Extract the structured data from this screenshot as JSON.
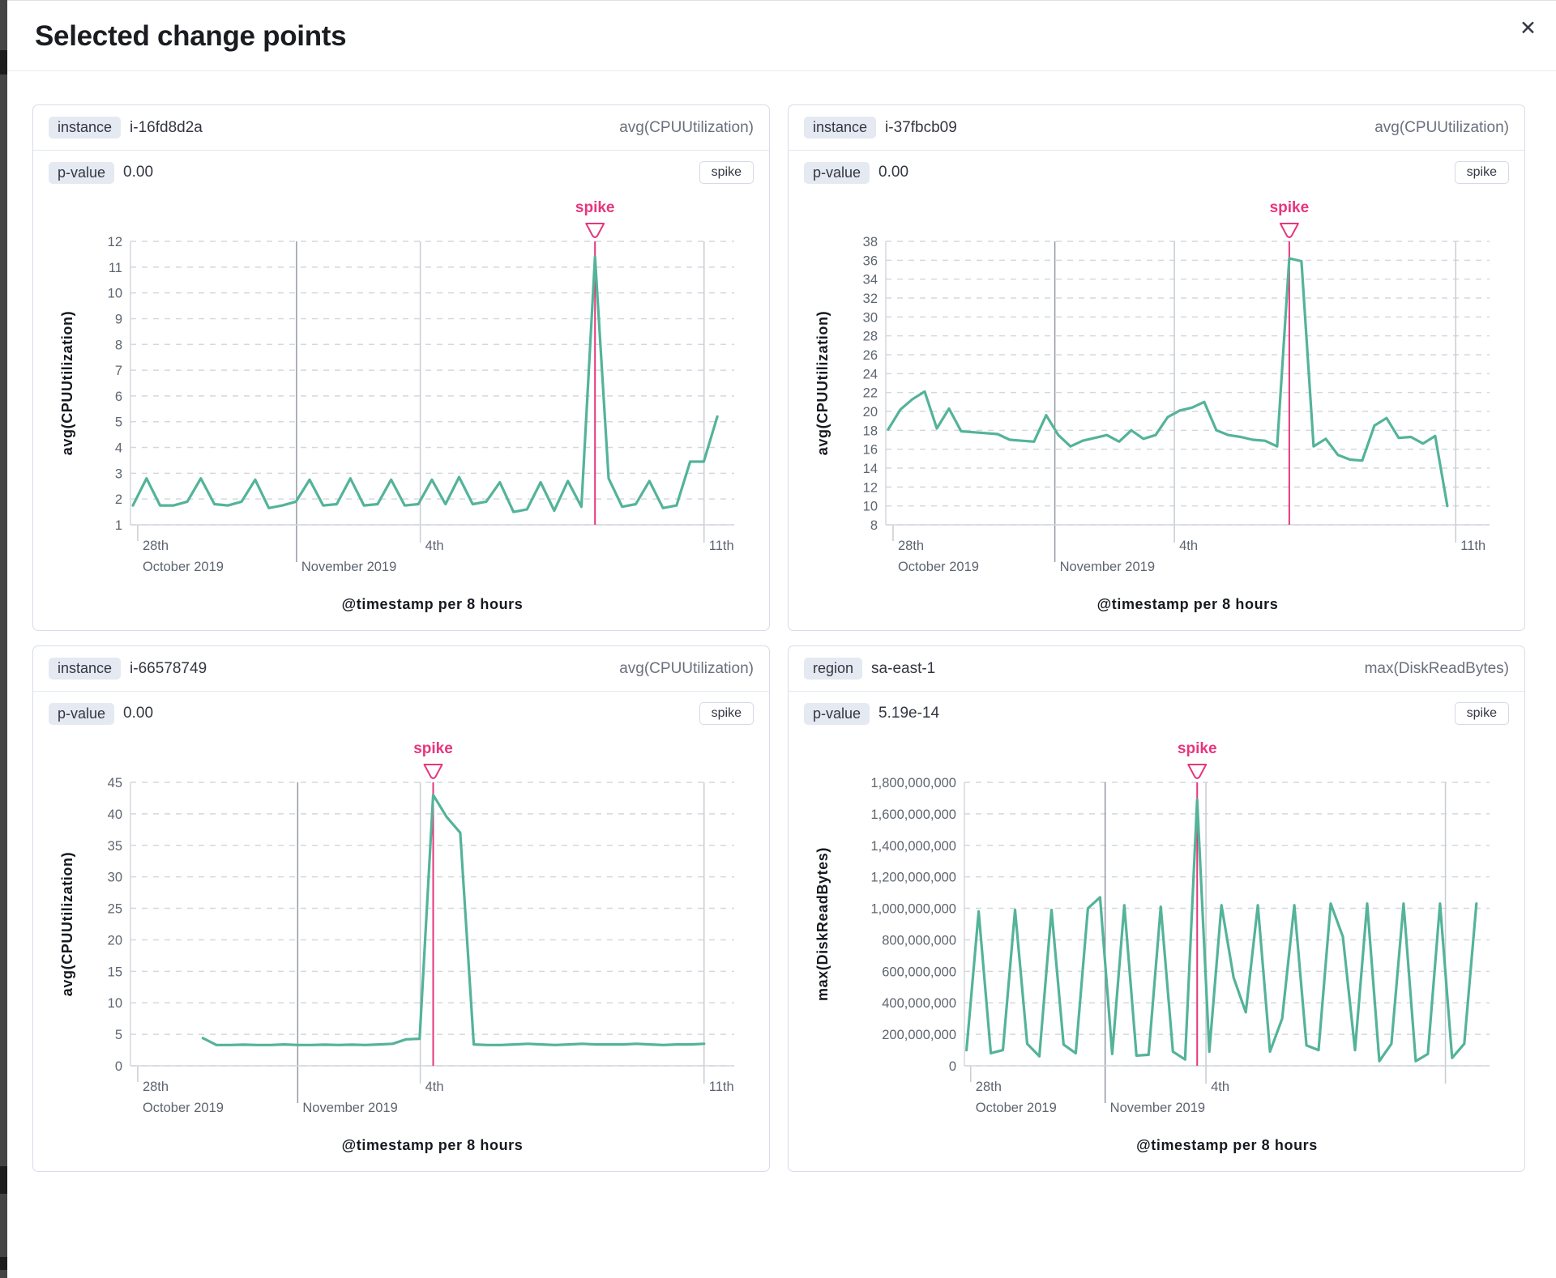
{
  "modal": {
    "title": "Selected change points",
    "close_icon": "✕"
  },
  "colors": {
    "line": "#54b399",
    "annotation": "#e7367d",
    "grid_dark": "#9499a2",
    "grid_light": "#c9ccd2",
    "grid_dashed": "#d4d8de",
    "axis": "#d3d7dd"
  },
  "cards": [
    {
      "badge": "instance",
      "badge_value": "i-16fd8d2a",
      "metric": "avg(CPUUtilization)",
      "p_label": "p-value",
      "p_value": "0.00",
      "spike_label": "spike",
      "chart_data": {
        "type": "line",
        "title": "",
        "ylabel": "avg(CPUUtilization)",
        "xlabel": "@timestamp per 8 hours",
        "annotation_label": "spike",
        "ylim": [
          1,
          12
        ],
        "ytick_values": [
          1,
          2,
          3,
          4,
          5,
          6,
          7,
          8,
          9,
          10,
          11,
          12
        ],
        "ytick_labels": [
          "1",
          "2",
          "3",
          "4",
          "5",
          "6",
          "7",
          "8",
          "9",
          "10",
          "11",
          "12"
        ],
        "x_range": [
          0.004,
          0.972
        ],
        "x_marks": [
          {
            "frac": 0.012,
            "l1": "28th",
            "l2": "October 2019"
          },
          {
            "frac": 0.275,
            "l2": "November 2019",
            "grid": "dark"
          },
          {
            "frac": 0.48,
            "l1": "4th",
            "grid": "light"
          },
          {
            "frac": 0.95,
            "l1": "11th",
            "grid": "light"
          }
        ],
        "values": [
          1.75,
          2.8,
          1.75,
          1.75,
          1.9,
          2.8,
          1.8,
          1.75,
          1.9,
          2.75,
          1.65,
          1.75,
          1.9,
          2.75,
          1.75,
          1.8,
          2.8,
          1.75,
          1.8,
          2.75,
          1.75,
          1.8,
          2.75,
          1.8,
          2.85,
          1.8,
          1.9,
          2.65,
          1.5,
          1.6,
          2.65,
          1.55,
          2.7,
          1.7,
          11.4,
          2.8,
          1.7,
          1.8,
          2.7,
          1.65,
          1.75,
          3.45,
          3.45,
          5.2
        ]
      }
    },
    {
      "badge": "instance",
      "badge_value": "i-37fbcb09",
      "metric": "avg(CPUUtilization)",
      "p_label": "p-value",
      "p_value": "0.00",
      "spike_label": "spike",
      "chart_data": {
        "type": "line",
        "title": "",
        "ylabel": "avg(CPUUtilization)",
        "xlabel": "@timestamp per 8 hours",
        "annotation_label": "spike",
        "ylim": [
          8,
          38
        ],
        "ytick_values": [
          8,
          10,
          12,
          14,
          16,
          18,
          20,
          22,
          24,
          26,
          28,
          30,
          32,
          34,
          36,
          38
        ],
        "ytick_labels": [
          "8",
          "10",
          "12",
          "14",
          "16",
          "18",
          "20",
          "22",
          "24",
          "26",
          "28",
          "30",
          "32",
          "34",
          "36",
          "38"
        ],
        "x_range": [
          0.004,
          0.93
        ],
        "x_marks": [
          {
            "frac": 0.012,
            "l1": "28th",
            "l2": "October 2019"
          },
          {
            "frac": 0.28,
            "l2": "November 2019",
            "grid": "dark"
          },
          {
            "frac": 0.478,
            "l1": "4th",
            "grid": "light"
          },
          {
            "frac": 0.944,
            "l1": "11th",
            "grid": "light"
          }
        ],
        "values": [
          18.1,
          20.2,
          21.3,
          22.1,
          18.2,
          20.3,
          17.9,
          17.8,
          17.7,
          17.6,
          17.0,
          16.9,
          16.8,
          19.6,
          17.5,
          16.3,
          16.9,
          17.2,
          17.5,
          16.8,
          18.0,
          17.1,
          17.5,
          19.4,
          20.1,
          20.4,
          21.0,
          18.0,
          17.5,
          17.3,
          17.0,
          16.9,
          16.3,
          36.2,
          35.9,
          16.3,
          17.1,
          15.4,
          14.9,
          14.8,
          18.5,
          19.3,
          17.2,
          17.3,
          16.6,
          17.4,
          10.0
        ]
      }
    },
    {
      "badge": "instance",
      "badge_value": "i-66578749",
      "metric": "avg(CPUUtilization)",
      "p_label": "p-value",
      "p_value": "0.00",
      "spike_label": "spike",
      "chart_data": {
        "type": "line",
        "title": "",
        "ylabel": "avg(CPUUtilization)",
        "xlabel": "@timestamp per 8 hours",
        "annotation_label": "spike",
        "ylim": [
          0,
          45
        ],
        "ytick_values": [
          0,
          5,
          10,
          15,
          20,
          25,
          30,
          35,
          40,
          45
        ],
        "ytick_labels": [
          "0",
          "5",
          "10",
          "15",
          "20",
          "25",
          "30",
          "35",
          "40",
          "45"
        ],
        "x_range": [
          0.12,
          0.95
        ],
        "x_marks": [
          {
            "frac": 0.012,
            "l1": "28th",
            "l2": "October 2019"
          },
          {
            "frac": 0.277,
            "l2": "November 2019",
            "grid": "dark"
          },
          {
            "frac": 0.48,
            "l1": "4th",
            "grid": "light"
          },
          {
            "frac": 0.95,
            "l1": "11th",
            "grid": "light"
          }
        ],
        "values": [
          4.4,
          3.3,
          3.3,
          3.35,
          3.3,
          3.3,
          3.4,
          3.3,
          3.3,
          3.35,
          3.3,
          3.35,
          3.3,
          3.4,
          3.5,
          4.2,
          4.3,
          43.0,
          39.5,
          37.0,
          3.4,
          3.3,
          3.3,
          3.4,
          3.5,
          3.4,
          3.3,
          3.4,
          3.5,
          3.4,
          3.4,
          3.4,
          3.5,
          3.4,
          3.3,
          3.4,
          3.4,
          3.5
        ]
      }
    },
    {
      "badge": "region",
      "badge_value": "sa-east-1",
      "metric": "max(DiskReadBytes)",
      "p_label": "p-value",
      "p_value": "5.19e-14",
      "spike_label": "spike",
      "chart_data": {
        "type": "line",
        "title": "",
        "ylabel": "max(DiskReadBytes)",
        "xlabel": "@timestamp per 8 hours",
        "annotation_label": "spike",
        "ylim": [
          0,
          1800000000
        ],
        "ytick_values": [
          0,
          200000000,
          400000000,
          600000000,
          800000000,
          1000000000,
          1200000000,
          1400000000,
          1600000000,
          1800000000
        ],
        "ytick_labels": [
          "0",
          "200,000,000",
          "400,000,000",
          "600,000,000",
          "800,000,000",
          "1,000,000,000",
          "1,200,000,000",
          "1,400,000,000",
          "1,600,000,000",
          "1,800,000,000"
        ],
        "x_range": [
          0.004,
          0.975
        ],
        "x_marks": [
          {
            "frac": 0.012,
            "l1": "28th",
            "l2": "October 2019"
          },
          {
            "frac": 0.268,
            "l2": "November 2019",
            "grid": "dark"
          },
          {
            "frac": 0.46,
            "l1": "4th",
            "grid": "light"
          },
          {
            "frac": 0.916,
            "grid": "light"
          }
        ],
        "values": [
          100000000,
          980000000,
          80000000,
          100000000,
          990000000,
          140000000,
          60000000,
          990000000,
          135000000,
          80000000,
          1000000000,
          1070000000,
          75000000,
          1020000000,
          65000000,
          70000000,
          1010000000,
          90000000,
          40000000,
          1690000000,
          90000000,
          1020000000,
          560000000,
          340000000,
          1020000000,
          90000000,
          300000000,
          1020000000,
          130000000,
          100000000,
          1030000000,
          820000000,
          100000000,
          1030000000,
          30000000,
          140000000,
          1030000000,
          30000000,
          75000000,
          1030000000,
          50000000,
          140000000,
          1030000000
        ]
      }
    }
  ]
}
